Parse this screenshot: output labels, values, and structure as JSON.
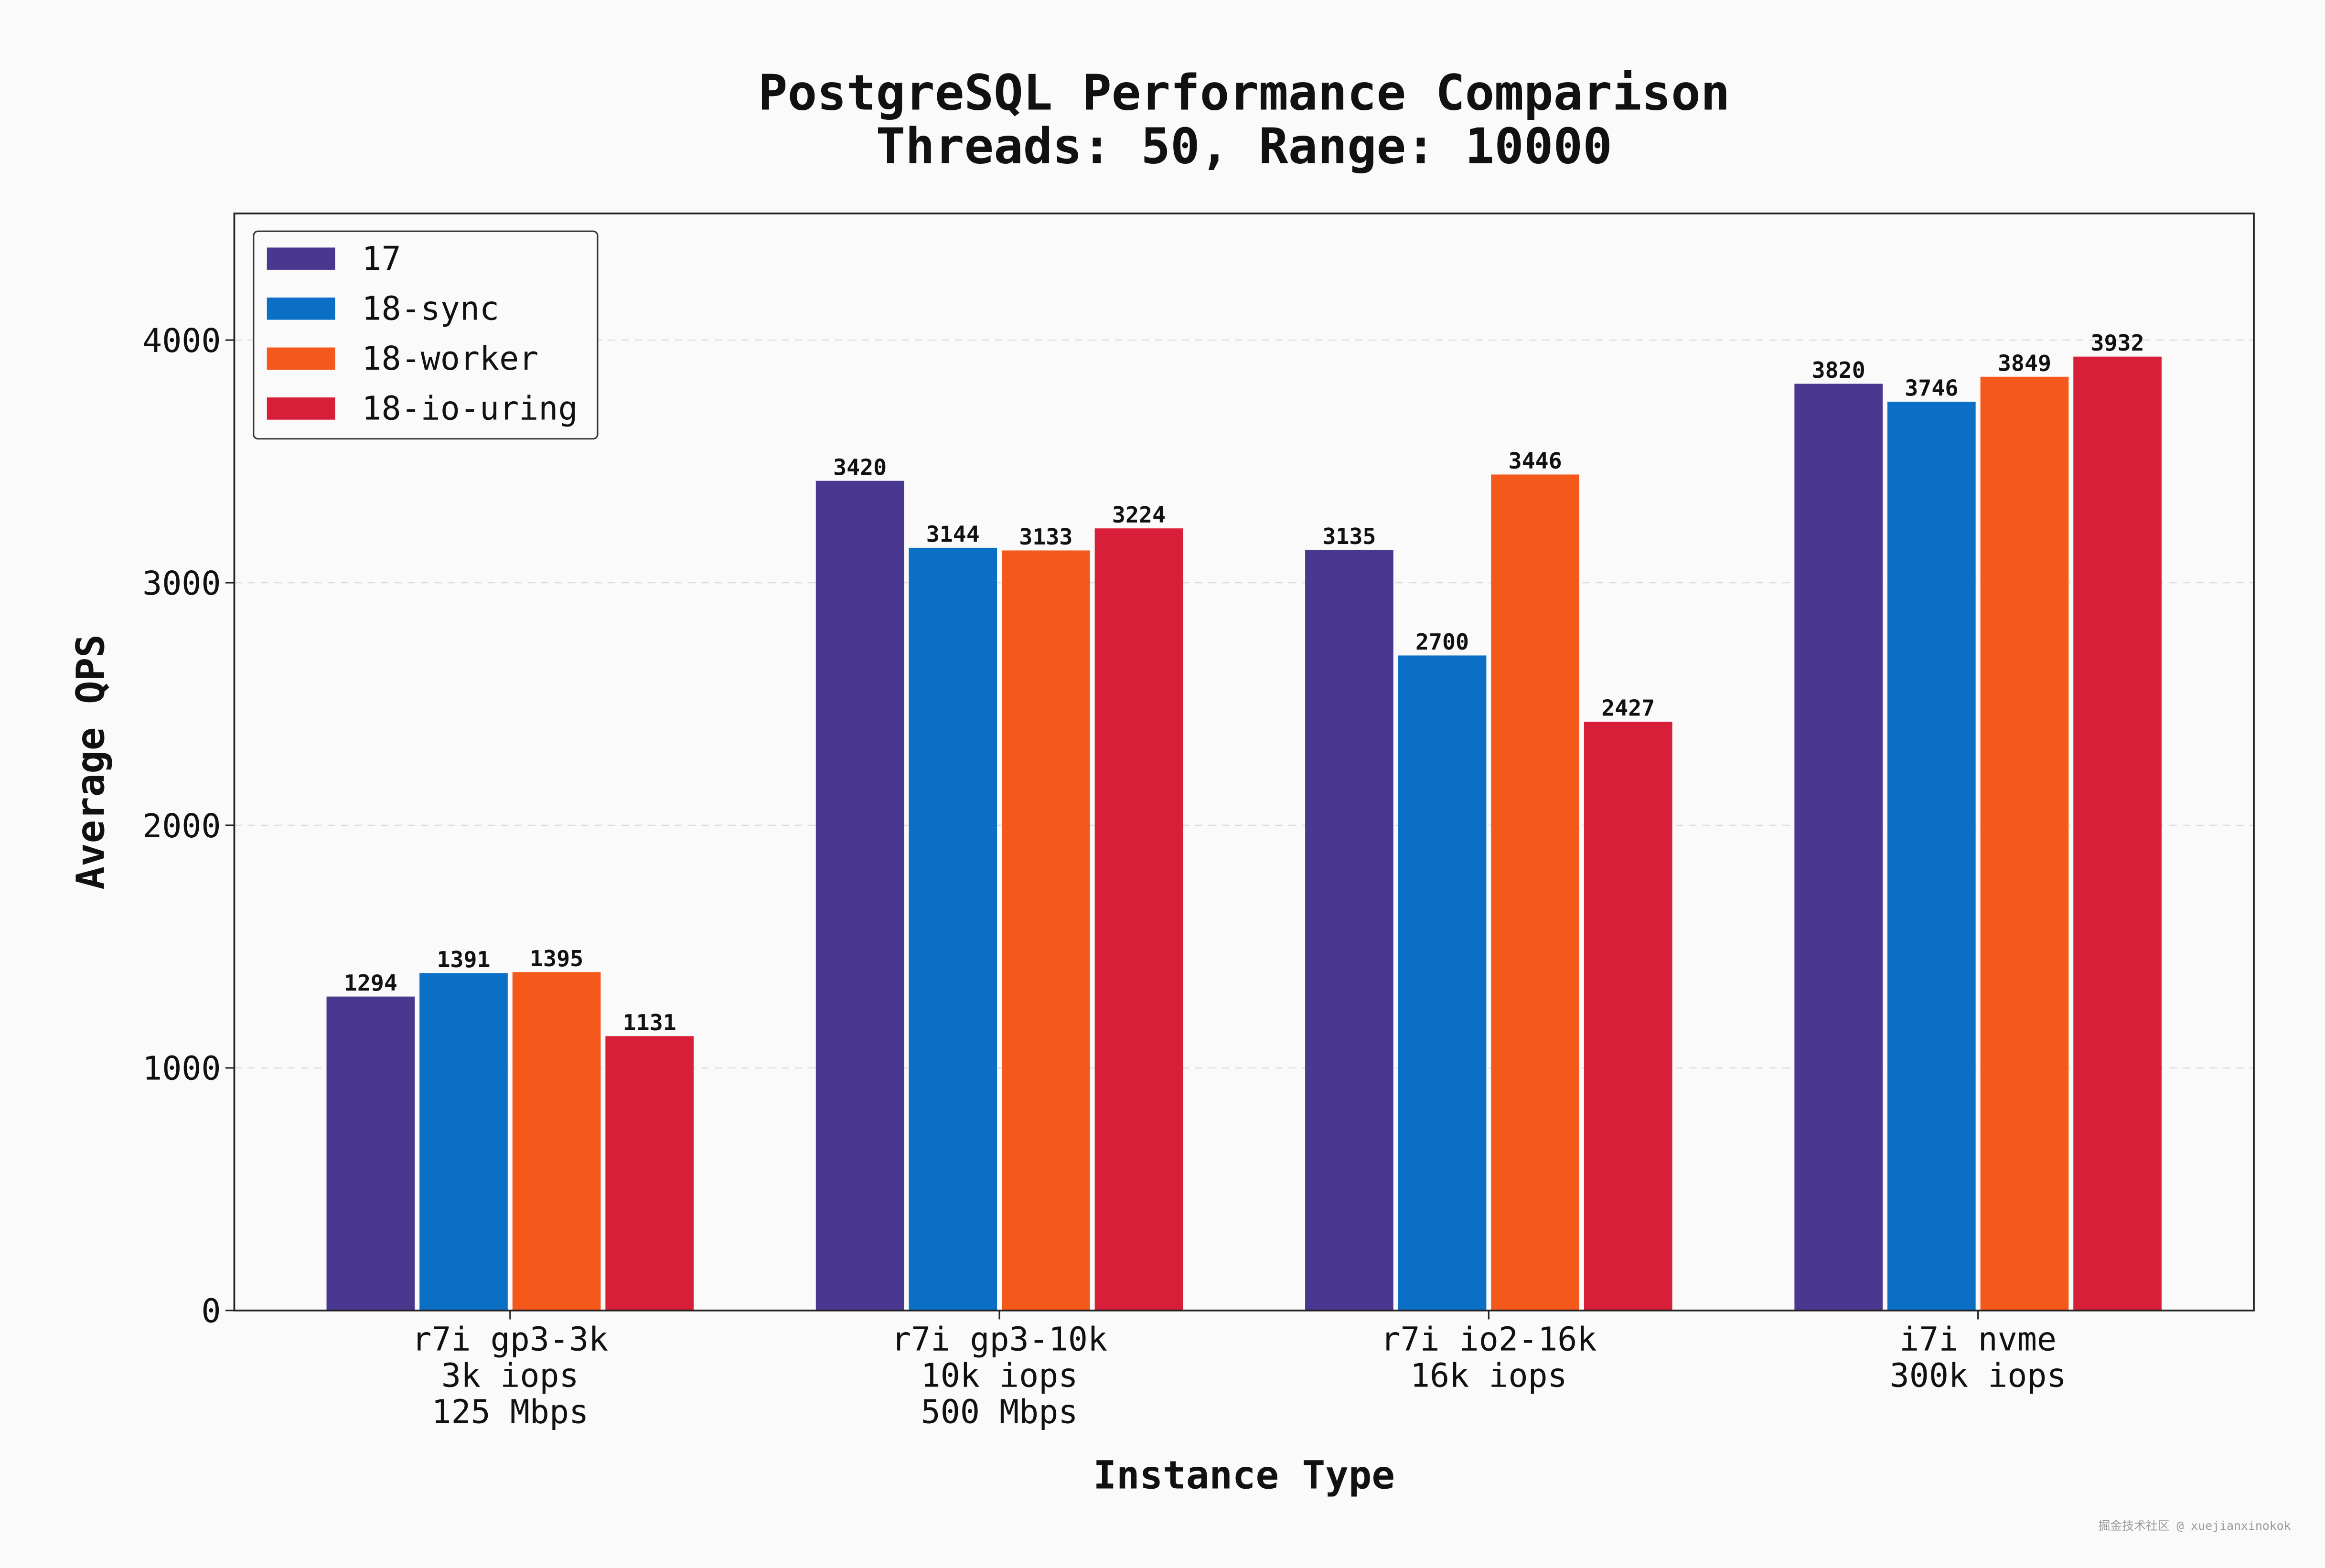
{
  "chart_data": {
    "type": "bar",
    "title": "PostgreSQL Performance Comparison",
    "subtitle": "Threads: 50, Range: 10000",
    "x_label": "Instance Type",
    "y_label": "Average QPS",
    "categories": [
      "r7i gp3-3k\n3k iops\n125 Mbps",
      "r7i gp3-10k\n10k iops\n500 Mbps",
      "r7i io2-16k\n16k iops",
      "i7i nvme\n300k iops"
    ],
    "series": [
      {
        "name": "17",
        "color": "#4a3890",
        "values": [
          1294,
          3420,
          3135,
          3820
        ]
      },
      {
        "name": "18-sync",
        "color": "#0c6fc6",
        "values": [
          1391,
          3144,
          2700,
          3746
        ]
      },
      {
        "name": "18-worker",
        "color": "#f4581a",
        "values": [
          1395,
          3133,
          3446,
          3849
        ]
      },
      {
        "name": "18-io-uring",
        "color": "#d81f3a",
        "values": [
          1131,
          3224,
          2427,
          3932
        ]
      }
    ],
    "ylim": [
      0,
      4522
    ],
    "yticks": [
      0,
      1000,
      2000,
      3000,
      4000
    ],
    "grid": true,
    "legend": "upper left",
    "watermark": "掘金技术社区 @ xuejianxinokok"
  }
}
